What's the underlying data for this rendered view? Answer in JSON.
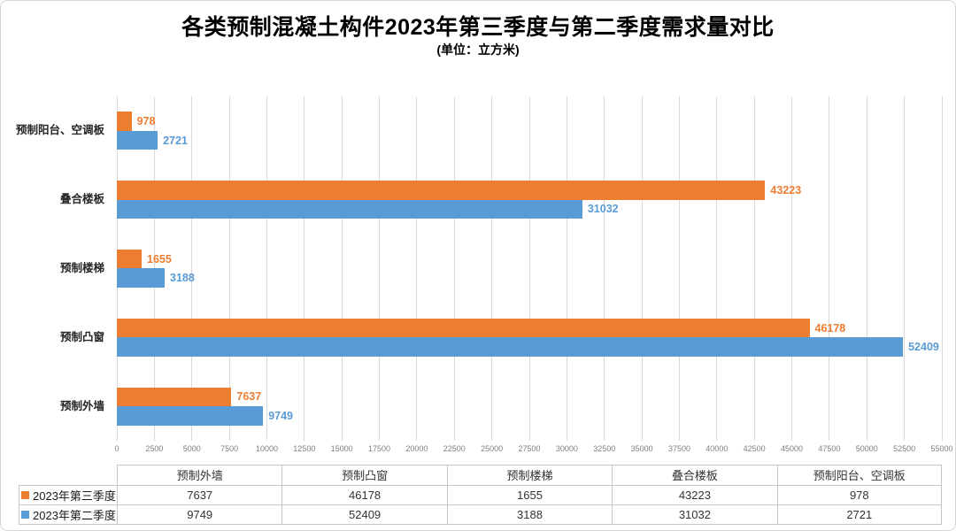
{
  "title": "各类预制混凝土构件2023年第三季度与第二季度需求量对比",
  "subtitle": "(单位：立方米)",
  "colors": {
    "series_q3_orange": "#ED7D31",
    "series_q2_blue": "#5B9BD5",
    "gridline": "#D9D9D9",
    "axis_text": "#808080",
    "table_border": "#C6C6C6"
  },
  "chart_data": {
    "type": "bar",
    "orientation": "horizontal",
    "title": "各类预制混凝土构件2023年第三季度与第二季度需求量对比",
    "subtitle": "(单位：立方米)",
    "categories": [
      "预制外墙",
      "预制凸窗",
      "预制楼梯",
      "叠合楼板",
      "预制阳台、空调板"
    ],
    "category_display_order_top_to_bottom": [
      "预制阳台、空调板",
      "叠合楼板",
      "预制楼梯",
      "预制凸窗",
      "预制外墙"
    ],
    "series": [
      {
        "name": "2023年第三季度",
        "color": "#ED7D31",
        "values": [
          7637,
          46178,
          1655,
          43223,
          978
        ]
      },
      {
        "name": "2023年第二季度",
        "color": "#5B9BD5",
        "values": [
          9749,
          52409,
          3188,
          31032,
          2721
        ]
      }
    ],
    "xlim": [
      0,
      55000
    ],
    "x_ticks": [
      0,
      2500,
      5000,
      7500,
      10000,
      12500,
      15000,
      17500,
      20000,
      22500,
      25000,
      27500,
      30000,
      32500,
      35000,
      37500,
      40000,
      42500,
      45000,
      47500,
      50000,
      52500,
      55000
    ],
    "grid": true,
    "data_labels": true,
    "legend_position": "bottom-table"
  },
  "table": {
    "columns": [
      "预制外墙",
      "预制凸窗",
      "预制楼梯",
      "叠合楼板",
      "预制阳台、空调板"
    ],
    "rows": [
      {
        "label": "2023年第三季度",
        "color": "#ED7D31",
        "values": [
          "7637",
          "46178",
          "1655",
          "43223",
          "978"
        ]
      },
      {
        "label": "2023年第二季度",
        "color": "#5B9BD5",
        "values": [
          "9749",
          "52409",
          "3188",
          "31032",
          "2721"
        ]
      }
    ]
  }
}
